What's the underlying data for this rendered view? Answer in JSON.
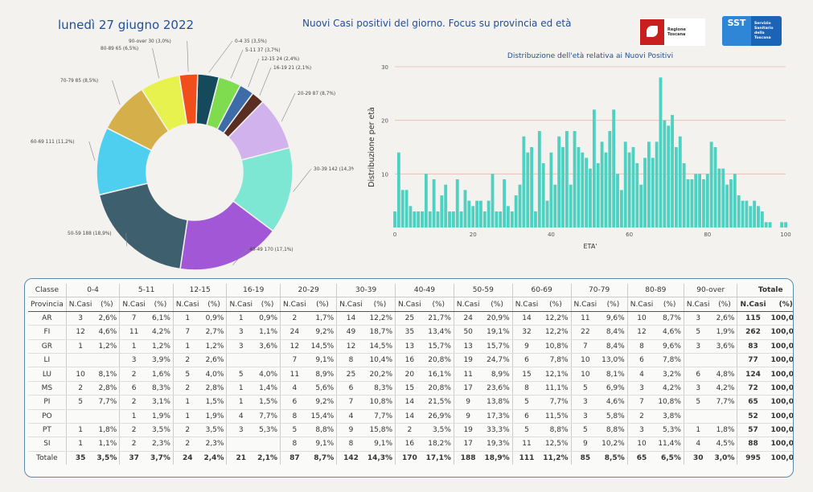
{
  "header": {
    "date": "lunedì 27 giugno 2022",
    "title": "Nuovi Casi positivi del giorno. Focus su provincia ed età",
    "logo_regione": "Regione Toscana",
    "logo_sst": "SST",
    "logo_sst_sub": "Servizio Sanitario della Toscana"
  },
  "colors": {
    "accent": "#1f4f9a",
    "bar": "#4fd1c2"
  },
  "chart_data": [
    {
      "type": "pie",
      "donut": true,
      "slices": [
        {
          "label": "0-4 35 (3,5%)",
          "value": 35,
          "color": "#15495c"
        },
        {
          "label": "5-11 37 (3,7%)",
          "value": 37,
          "color": "#7fdc4f"
        },
        {
          "label": "12-15 24 (2,4%)",
          "value": 24,
          "color": "#3d6ca9"
        },
        {
          "label": "16-19 21 (2,1%)",
          "value": 21,
          "color": "#5a2e22"
        },
        {
          "label": "20-29 87 (8,7%)",
          "value": 87,
          "color": "#d1b2ec"
        },
        {
          "label": "30-39 142 (14,3%)",
          "value": 142,
          "color": "#7ee7d3"
        },
        {
          "label": "40-49 170 (17,1%)",
          "value": 170,
          "color": "#a257d6"
        },
        {
          "label": "50-59 188 (18,9%)",
          "value": 188,
          "color": "#3e5f6e"
        },
        {
          "label": "60-69 111 (11,2%)",
          "value": 111,
          "color": "#4fcfef"
        },
        {
          "label": "70-79 85 (8,5%)",
          "value": 85,
          "color": "#d5b04a"
        },
        {
          "label": "80-89 65 (6,5%)",
          "value": 65,
          "color": "#e8f24e"
        },
        {
          "label": "90-over 30 (3,0%)",
          "value": 30,
          "color": "#f24e1b"
        }
      ]
    },
    {
      "type": "bar",
      "title": "Distribuzione dell'età relativa ai Nuovi Positivi",
      "xlabel": "ETA'",
      "ylabel": "Distribuzione per età",
      "xlim": [
        0,
        100
      ],
      "ylim": [
        0,
        30
      ],
      "xticks": [
        0,
        20,
        40,
        60,
        80,
        100
      ],
      "yticks": [
        10,
        20,
        30
      ],
      "x": [
        0,
        1,
        2,
        3,
        4,
        5,
        6,
        7,
        8,
        9,
        10,
        11,
        12,
        13,
        14,
        15,
        16,
        17,
        18,
        19,
        20,
        21,
        22,
        23,
        24,
        25,
        26,
        27,
        28,
        29,
        30,
        31,
        32,
        33,
        34,
        35,
        36,
        37,
        38,
        39,
        40,
        41,
        42,
        43,
        44,
        45,
        46,
        47,
        48,
        49,
        50,
        51,
        52,
        53,
        54,
        55,
        56,
        57,
        58,
        59,
        60,
        61,
        62,
        63,
        64,
        65,
        66,
        67,
        68,
        69,
        70,
        71,
        72,
        73,
        74,
        75,
        76,
        77,
        78,
        79,
        80,
        81,
        82,
        83,
        84,
        85,
        86,
        87,
        88,
        89,
        90,
        91,
        92,
        93,
        94,
        95,
        96,
        97,
        98,
        99,
        100
      ],
      "values": [
        3,
        14,
        7,
        7,
        4,
        3,
        3,
        3,
        10,
        3,
        9,
        3,
        6,
        8,
        3,
        3,
        9,
        3,
        7,
        5,
        4,
        5,
        5,
        3,
        5,
        10,
        3,
        3,
        9,
        4,
        3,
        6,
        8,
        17,
        14,
        15,
        3,
        18,
        12,
        5,
        14,
        8,
        17,
        15,
        18,
        8,
        18,
        15,
        14,
        13,
        11,
        22,
        12,
        16,
        14,
        18,
        22,
        10,
        7,
        16,
        14,
        15,
        12,
        8,
        13,
        16,
        13,
        16,
        28,
        20,
        19,
        21,
        15,
        17,
        12,
        9,
        9,
        10,
        10,
        9,
        10,
        16,
        15,
        11,
        11,
        8,
        9,
        10,
        6,
        5,
        5,
        4,
        5,
        4,
        3,
        1,
        1,
        0,
        0,
        1,
        1
      ],
      "grid": true
    },
    {
      "type": "table",
      "columns": [
        "Classe",
        "0-4",
        "5-11",
        "12-15",
        "16-19",
        "20-29",
        "30-39",
        "40-49",
        "50-59",
        "60-69",
        "70-79",
        "80-89",
        "90-over",
        "Totale"
      ],
      "subheaders": [
        "Provincia",
        "N.Casi",
        "(%)",
        "N.Casi",
        "(%)",
        "N.Casi",
        "(%)",
        "N.Casi",
        "(%)",
        "N.Casi",
        "(%)",
        "N.Casi",
        "(%)",
        "N.Casi",
        "(%)",
        "N.Casi",
        "(%)",
        "N.Casi",
        "(%)",
        "N.Casi",
        "(%)",
        "N.Casi",
        "(%)",
        "N.Casi",
        "(%)",
        "N.Casi",
        "(%)"
      ],
      "rows": [
        [
          "AR",
          "3",
          "2,6%",
          "7",
          "6,1%",
          "1",
          "0,9%",
          "1",
          "0,9%",
          "2",
          "1,7%",
          "14",
          "12,2%",
          "25",
          "21,7%",
          "24",
          "20,9%",
          "14",
          "12,2%",
          "11",
          "9,6%",
          "10",
          "8,7%",
          "3",
          "2,6%",
          "115",
          "100,0%"
        ],
        [
          "FI",
          "12",
          "4,6%",
          "11",
          "4,2%",
          "7",
          "2,7%",
          "3",
          "1,1%",
          "24",
          "9,2%",
          "49",
          "18,7%",
          "35",
          "13,4%",
          "50",
          "19,1%",
          "32",
          "12,2%",
          "22",
          "8,4%",
          "12",
          "4,6%",
          "5",
          "1,9%",
          "262",
          "100,0%"
        ],
        [
          "GR",
          "1",
          "1,2%",
          "1",
          "1,2%",
          "1",
          "1,2%",
          "3",
          "3,6%",
          "12",
          "14,5%",
          "12",
          "14,5%",
          "13",
          "15,7%",
          "13",
          "15,7%",
          "9",
          "10,8%",
          "7",
          "8,4%",
          "8",
          "9,6%",
          "3",
          "3,6%",
          "83",
          "100,0%"
        ],
        [
          "LI",
          "",
          "",
          "3",
          "3,9%",
          "2",
          "2,6%",
          "",
          "",
          "7",
          "9,1%",
          "8",
          "10,4%",
          "16",
          "20,8%",
          "19",
          "24,7%",
          "6",
          "7,8%",
          "10",
          "13,0%",
          "6",
          "7,8%",
          "",
          "",
          "77",
          "100,0%"
        ],
        [
          "LU",
          "10",
          "8,1%",
          "2",
          "1,6%",
          "5",
          "4,0%",
          "5",
          "4,0%",
          "11",
          "8,9%",
          "25",
          "20,2%",
          "20",
          "16,1%",
          "11",
          "8,9%",
          "15",
          "12,1%",
          "10",
          "8,1%",
          "4",
          "3,2%",
          "6",
          "4,8%",
          "124",
          "100,0%"
        ],
        [
          "MS",
          "2",
          "2,8%",
          "6",
          "8,3%",
          "2",
          "2,8%",
          "1",
          "1,4%",
          "4",
          "5,6%",
          "6",
          "8,3%",
          "15",
          "20,8%",
          "17",
          "23,6%",
          "8",
          "11,1%",
          "5",
          "6,9%",
          "3",
          "4,2%",
          "3",
          "4,2%",
          "72",
          "100,0%"
        ],
        [
          "PI",
          "5",
          "7,7%",
          "2",
          "3,1%",
          "1",
          "1,5%",
          "1",
          "1,5%",
          "6",
          "9,2%",
          "7",
          "10,8%",
          "14",
          "21,5%",
          "9",
          "13,8%",
          "5",
          "7,7%",
          "3",
          "4,6%",
          "7",
          "10,8%",
          "5",
          "7,7%",
          "65",
          "100,0%"
        ],
        [
          "PO",
          "",
          "",
          "1",
          "1,9%",
          "1",
          "1,9%",
          "4",
          "7,7%",
          "8",
          "15,4%",
          "4",
          "7,7%",
          "14",
          "26,9%",
          "9",
          "17,3%",
          "6",
          "11,5%",
          "3",
          "5,8%",
          "2",
          "3,8%",
          "",
          "",
          "52",
          "100,0%"
        ],
        [
          "PT",
          "1",
          "1,8%",
          "2",
          "3,5%",
          "2",
          "3,5%",
          "3",
          "5,3%",
          "5",
          "8,8%",
          "9",
          "15,8%",
          "2",
          "3,5%",
          "19",
          "33,3%",
          "5",
          "8,8%",
          "5",
          "8,8%",
          "3",
          "5,3%",
          "1",
          "1,8%",
          "57",
          "100,0%"
        ],
        [
          "SI",
          "1",
          "1,1%",
          "2",
          "2,3%",
          "2",
          "2,3%",
          "",
          "",
          "8",
          "9,1%",
          "8",
          "9,1%",
          "16",
          "18,2%",
          "17",
          "19,3%",
          "11",
          "12,5%",
          "9",
          "10,2%",
          "10",
          "11,4%",
          "4",
          "4,5%",
          "88",
          "100,0%"
        ]
      ],
      "total": [
        "Totale",
        "35",
        "3,5%",
        "37",
        "3,7%",
        "24",
        "2,4%",
        "21",
        "2,1%",
        "87",
        "8,7%",
        "142",
        "14,3%",
        "170",
        "17,1%",
        "188",
        "18,9%",
        "111",
        "11,2%",
        "85",
        "8,5%",
        "65",
        "6,5%",
        "30",
        "3,0%",
        "995",
        "100,0%"
      ]
    }
  ]
}
